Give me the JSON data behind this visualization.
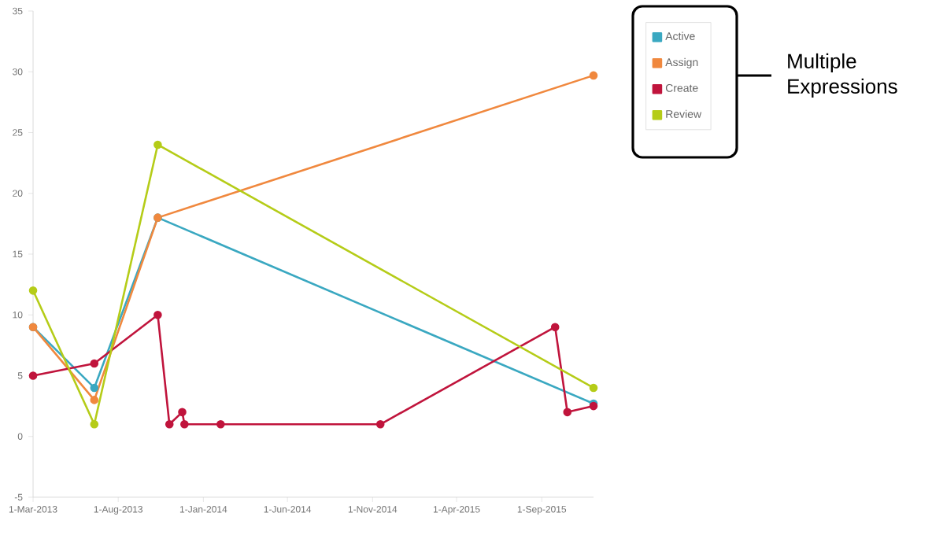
{
  "chart_data": {
    "type": "line",
    "x": [
      "2013-03-01",
      "2013-06-19",
      "2013-10-11",
      "2015-12-03"
    ],
    "series": [
      {
        "name": "Active",
        "color": "#3aa8c1",
        "values": [
          9,
          4,
          18,
          2.7
        ]
      },
      {
        "name": "Assign",
        "color": "#f0883e",
        "values": [
          9,
          3,
          18,
          29.7
        ]
      },
      {
        "name": "Create",
        "color": "#c0143c",
        "x": [
          "2013-03-01",
          "2013-06-19",
          "2013-10-11",
          "2013-11-01",
          "2013-11-24",
          "2013-11-28",
          "2014-02-01",
          "2014-11-15",
          "2015-09-25",
          "2015-10-17",
          "2015-12-03"
        ],
        "values": [
          5,
          6,
          10,
          1,
          2,
          1,
          1,
          1,
          9,
          2,
          2.5
        ]
      },
      {
        "name": "Review",
        "color": "#b5cc18",
        "values": [
          12,
          1,
          24,
          4
        ]
      }
    ],
    "xlim": [
      "2013-03-01",
      "2015-12-03"
    ],
    "xticks": [
      {
        "value": "2013-03-01",
        "label": "1-Mar-2013"
      },
      {
        "value": "2013-08-01",
        "label": "1-Aug-2013"
      },
      {
        "value": "2014-01-01",
        "label": "1-Jan-2014"
      },
      {
        "value": "2014-06-01",
        "label": "1-Jun-2014"
      },
      {
        "value": "2014-11-01",
        "label": "1-Nov-2014"
      },
      {
        "value": "2015-04-01",
        "label": "1-Apr-2015"
      },
      {
        "value": "2015-09-01",
        "label": "1-Sep-2015"
      }
    ],
    "ylim": [
      -5,
      35
    ],
    "yticks": [
      -5,
      0,
      5,
      10,
      15,
      20,
      25,
      30,
      35
    ],
    "marker": "circle",
    "legend": "top right",
    "grid": false,
    "annotations": [
      "Multiple Expressions"
    ]
  }
}
